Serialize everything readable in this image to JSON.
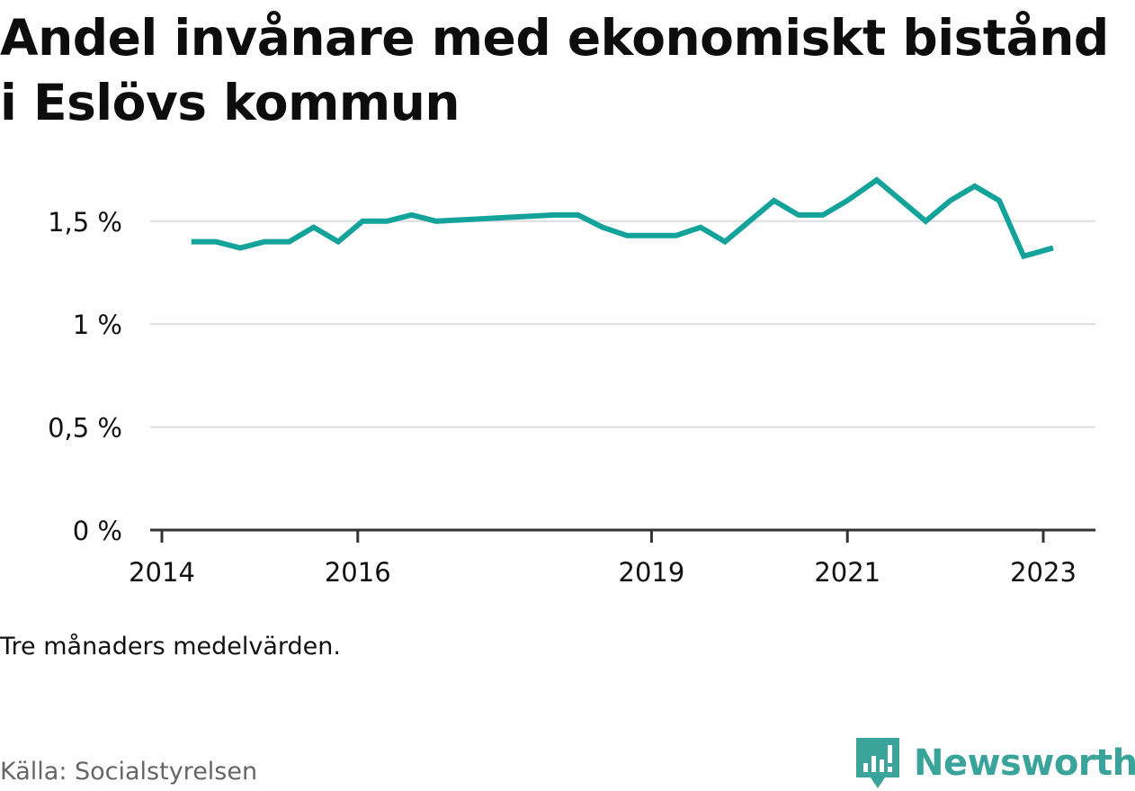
{
  "title": "Andel invånare med ekonomiskt bistånd i Eslövs kommun",
  "note": "Tre månaders medelvärden.",
  "source": "Källa: Socialstyrelsen",
  "brand": {
    "name": "Newsworthy",
    "icon": "newsworthy-logo-icon",
    "color": "#3aa39a"
  },
  "colors": {
    "line": "#14a39a",
    "grid": "#dddddd",
    "axis": "#333333",
    "text": "#111111"
  },
  "chart_data": {
    "type": "line",
    "title": "Andel invånare med ekonomiskt bistånd i Eslövs kommun",
    "xlabel": "",
    "ylabel": "",
    "ylim": [
      0,
      1.7
    ],
    "xlim": [
      2014,
      2023.25
    ],
    "x_ticks": [
      {
        "value": 2014,
        "label": "2014"
      },
      {
        "value": 2016,
        "label": "2016"
      },
      {
        "value": 2019,
        "label": "2019"
      },
      {
        "value": 2021,
        "label": "2021"
      },
      {
        "value": 2023,
        "label": "2023"
      }
    ],
    "y_ticks": [
      {
        "value": 0,
        "label": "0 %"
      },
      {
        "value": 0.5,
        "label": "0,5 %"
      },
      {
        "value": 1,
        "label": "1 %"
      },
      {
        "value": 1.5,
        "label": "1,5 %"
      }
    ],
    "grid": true,
    "series": [
      {
        "x": [
          2014.3,
          2014.55,
          2014.8,
          2015.05,
          2015.3,
          2015.55,
          2015.8,
          2016.05,
          2016.3,
          2016.55,
          2016.8,
          2018.0,
          2018.25,
          2018.5,
          2018.75,
          2019.0,
          2019.25,
          2019.5,
          2019.75,
          2020.0,
          2020.25,
          2020.5,
          2020.75,
          2021.0,
          2021.3,
          2021.8,
          2022.05,
          2022.3,
          2022.55,
          2022.8,
          2023.1
        ],
        "y": [
          1.4,
          1.4,
          1.37,
          1.4,
          1.4,
          1.47,
          1.4,
          1.5,
          1.5,
          1.53,
          1.5,
          1.53,
          1.53,
          1.47,
          1.43,
          1.43,
          1.43,
          1.47,
          1.4,
          1.5,
          1.6,
          1.53,
          1.53,
          1.6,
          1.7,
          1.5,
          1.6,
          1.67,
          1.6,
          1.33,
          1.37
        ]
      }
    ]
  }
}
